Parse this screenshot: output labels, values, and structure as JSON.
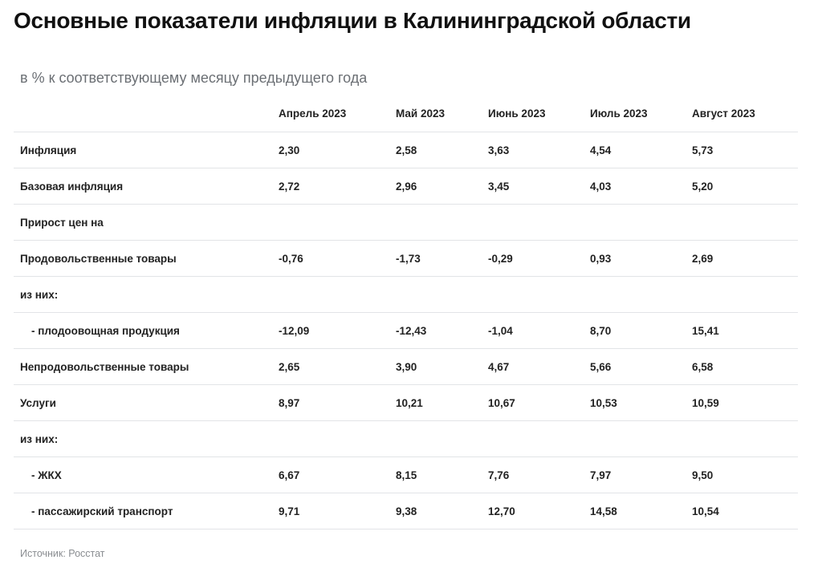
{
  "title": "Основные показатели инфляции в Калининградской области",
  "subtitle": "в % к соответствующему месяцу предыдущего года",
  "source": "Источник: Росстат",
  "chart_data": {
    "type": "table",
    "columns": [
      "",
      "Апрель 2023",
      "Май 2023",
      "Июнь 2023",
      "Июль 2023",
      "Август 2023"
    ],
    "rows": [
      {
        "label": "Инфляция",
        "indent": false,
        "values": [
          "2,30",
          "2,58",
          "3,63",
          "4,54",
          "5,73"
        ]
      },
      {
        "label": "Базовая инфляция",
        "indent": false,
        "values": [
          "2,72",
          "2,96",
          "3,45",
          "4,03",
          "5,20"
        ]
      },
      {
        "label": "Прирост цен на",
        "indent": false,
        "values": [
          "",
          "",
          "",
          "",
          ""
        ]
      },
      {
        "label": "Продовольственные товары",
        "indent": false,
        "values": [
          "-0,76",
          "-1,73",
          "-0,29",
          "0,93",
          "2,69"
        ]
      },
      {
        "label": "из них:",
        "indent": false,
        "values": [
          "",
          "",
          "",
          "",
          ""
        ]
      },
      {
        "label": "- плодоовощная продукция",
        "indent": true,
        "values": [
          "-12,09",
          "-12,43",
          "-1,04",
          "8,70",
          "15,41"
        ]
      },
      {
        "label": "Непродовольственные товары",
        "indent": false,
        "values": [
          "2,65",
          "3,90",
          "4,67",
          "5,66",
          "6,58"
        ]
      },
      {
        "label": "Услуги",
        "indent": false,
        "values": [
          "8,97",
          "10,21",
          "10,67",
          "10,53",
          "10,59"
        ]
      },
      {
        "label": "из них:",
        "indent": false,
        "values": [
          "",
          "",
          "",
          "",
          ""
        ]
      },
      {
        "label": "- ЖКХ",
        "indent": true,
        "values": [
          "6,67",
          "8,15",
          "7,76",
          "7,97",
          "9,50"
        ]
      },
      {
        "label": "- пассажирский транспорт",
        "indent": true,
        "values": [
          "9,71",
          "9,38",
          "12,70",
          "14,58",
          "10,54"
        ]
      }
    ]
  }
}
